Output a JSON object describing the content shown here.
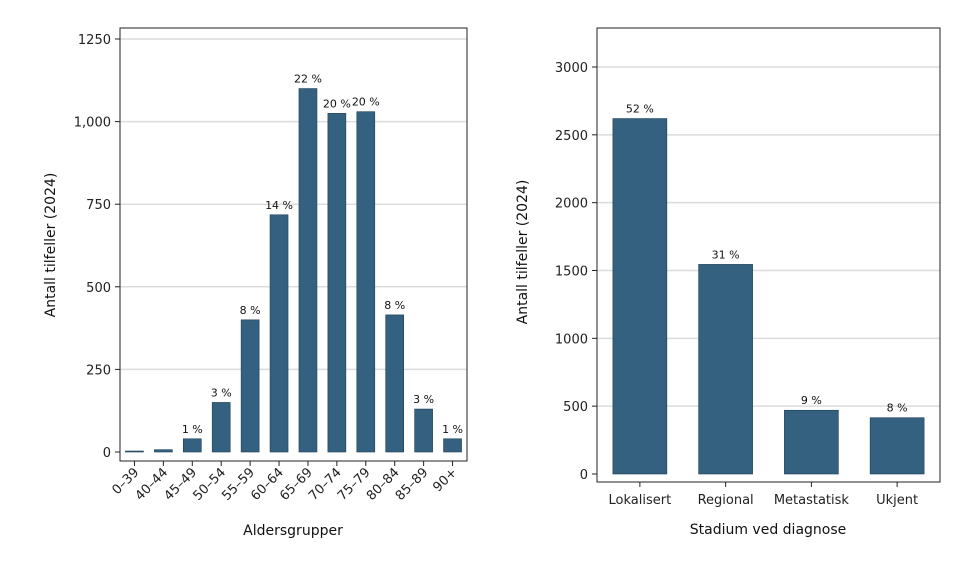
{
  "chart_data": [
    {
      "type": "bar",
      "xlabel": "Aldersgrupper",
      "ylabel": "Antall tilfeller (2024)",
      "ylim": [
        0,
        1300
      ],
      "yticks": [
        0,
        250,
        500,
        750,
        1000,
        1250
      ],
      "ytick_labels": [
        "0",
        "250",
        "500",
        "750",
        "1,000",
        "1250"
      ],
      "grid": true,
      "categories": [
        "0–39",
        "40–44",
        "45–49",
        "50–54",
        "55–59",
        "60–64",
        "65–69",
        "70–74",
        "75–79",
        "80–84",
        "85–89",
        "90+"
      ],
      "values": [
        3,
        7,
        40,
        150,
        400,
        718,
        1100,
        1025,
        1030,
        415,
        130,
        40
      ],
      "data_labels": [
        "",
        "",
        "1 %",
        "3 %",
        "8 %",
        "14 %",
        "22 %",
        "20 %",
        "20 %",
        "8 %",
        "3 %",
        "1 %"
      ],
      "bar_color": "#33617f"
    },
    {
      "type": "bar",
      "xlabel": "Stadium ved diagnose",
      "ylabel": "Antall tilfeller (2024)",
      "ylim": [
        0,
        3300
      ],
      "yticks": [
        0,
        500,
        1000,
        1500,
        2000,
        2500,
        3000
      ],
      "ytick_labels": [
        "0",
        "500",
        "1000",
        "1500",
        "2000",
        "2500",
        "3000"
      ],
      "grid": true,
      "categories": [
        "Lokalisert",
        "Regional",
        "Metastatisk",
        "Ukjent"
      ],
      "values": [
        2620,
        1545,
        470,
        415
      ],
      "data_labels": [
        "52 %",
        "31 %",
        "9 %",
        "8 %"
      ],
      "bar_color": "#33617f"
    }
  ]
}
